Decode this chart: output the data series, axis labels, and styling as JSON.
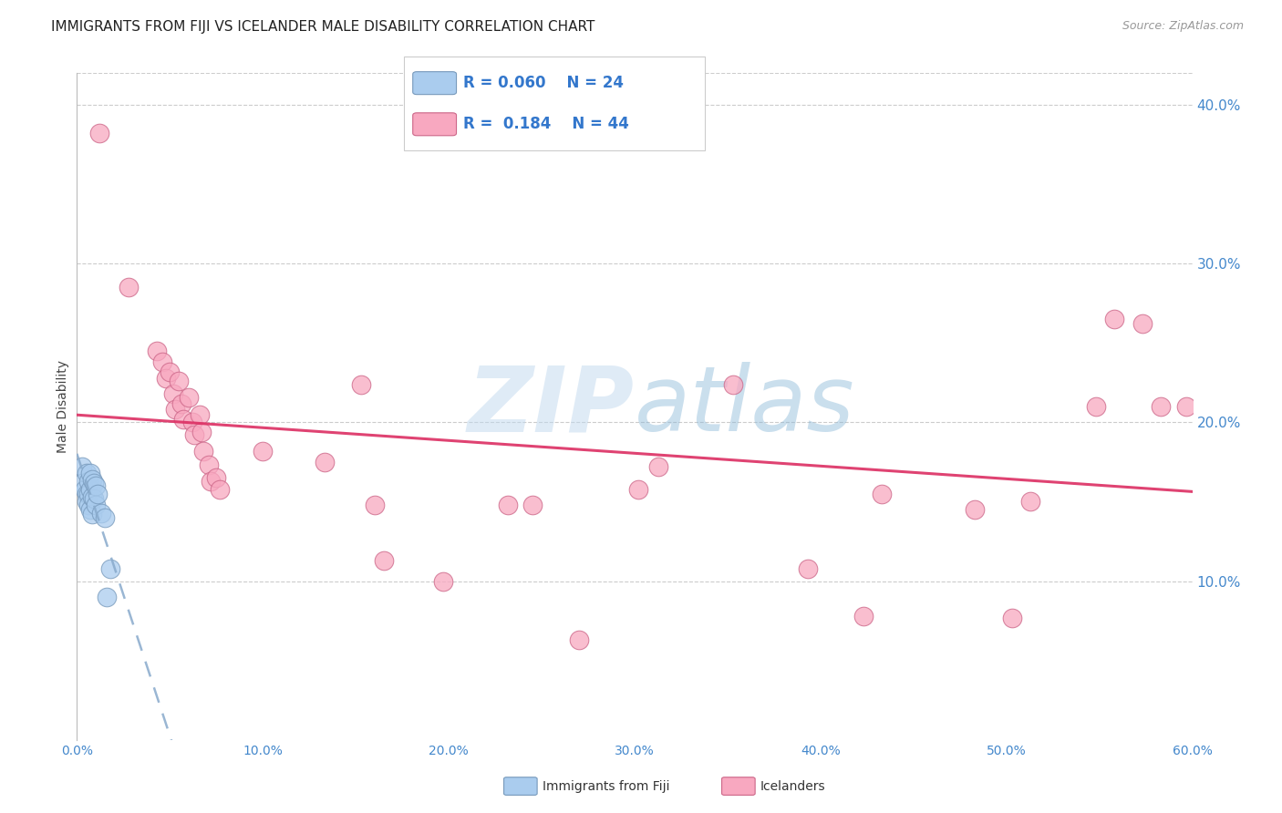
{
  "title": "IMMIGRANTS FROM FIJI VS ICELANDER MALE DISABILITY CORRELATION CHART",
  "source": "Source: ZipAtlas.com",
  "ylabel_label": "Male Disability",
  "watermark": "ZIPatlas",
  "xlim": [
    0.0,
    0.6
  ],
  "ylim": [
    0.0,
    0.42
  ],
  "xticks": [
    0.0,
    0.1,
    0.2,
    0.3,
    0.4,
    0.5,
    0.6
  ],
  "yticks": [
    0.1,
    0.2,
    0.3,
    0.4
  ],
  "xtick_labels": [
    "0.0%",
    "10.0%",
    "20.0%",
    "30.0%",
    "40.0%",
    "50.0%",
    "60.0%"
  ],
  "ytick_labels": [
    "10.0%",
    "20.0%",
    "30.0%",
    "40.0%"
  ],
  "legend_r1": "0.060",
  "legend_n1": "24",
  "legend_r2": "0.184",
  "legend_n2": "44",
  "fiji_color": "#aaccee",
  "fiji_edge": "#7799bb",
  "iceland_color": "#f8a8c0",
  "iceland_edge": "#cc6688",
  "line_fiji_color": "#88aacc",
  "line_iceland_color": "#dd3366",
  "fiji_label": "Immigrants from Fiji",
  "iceland_label": "Icelanders",
  "fiji_points": [
    [
      0.003,
      0.172
    ],
    [
      0.003,
      0.162
    ],
    [
      0.004,
      0.158
    ],
    [
      0.005,
      0.168
    ],
    [
      0.005,
      0.155
    ],
    [
      0.005,
      0.15
    ],
    [
      0.006,
      0.163
    ],
    [
      0.006,
      0.155
    ],
    [
      0.006,
      0.148
    ],
    [
      0.007,
      0.168
    ],
    [
      0.007,
      0.158
    ],
    [
      0.007,
      0.145
    ],
    [
      0.008,
      0.164
    ],
    [
      0.008,
      0.153
    ],
    [
      0.008,
      0.142
    ],
    [
      0.009,
      0.162
    ],
    [
      0.009,
      0.152
    ],
    [
      0.01,
      0.16
    ],
    [
      0.01,
      0.148
    ],
    [
      0.011,
      0.155
    ],
    [
      0.013,
      0.143
    ],
    [
      0.015,
      0.14
    ],
    [
      0.016,
      0.09
    ],
    [
      0.018,
      0.108
    ]
  ],
  "iceland_points": [
    [
      0.012,
      0.382
    ],
    [
      0.028,
      0.285
    ],
    [
      0.043,
      0.245
    ],
    [
      0.046,
      0.238
    ],
    [
      0.048,
      0.228
    ],
    [
      0.05,
      0.232
    ],
    [
      0.052,
      0.218
    ],
    [
      0.053,
      0.208
    ],
    [
      0.055,
      0.226
    ],
    [
      0.056,
      0.212
    ],
    [
      0.057,
      0.202
    ],
    [
      0.06,
      0.216
    ],
    [
      0.062,
      0.2
    ],
    [
      0.063,
      0.192
    ],
    [
      0.066,
      0.205
    ],
    [
      0.067,
      0.194
    ],
    [
      0.068,
      0.182
    ],
    [
      0.071,
      0.173
    ],
    [
      0.072,
      0.163
    ],
    [
      0.075,
      0.165
    ],
    [
      0.077,
      0.158
    ],
    [
      0.1,
      0.182
    ],
    [
      0.133,
      0.175
    ],
    [
      0.153,
      0.224
    ],
    [
      0.16,
      0.148
    ],
    [
      0.165,
      0.113
    ],
    [
      0.197,
      0.1
    ],
    [
      0.232,
      0.148
    ],
    [
      0.245,
      0.148
    ],
    [
      0.27,
      0.063
    ],
    [
      0.302,
      0.158
    ],
    [
      0.313,
      0.172
    ],
    [
      0.353,
      0.224
    ],
    [
      0.393,
      0.108
    ],
    [
      0.423,
      0.078
    ],
    [
      0.433,
      0.155
    ],
    [
      0.483,
      0.145
    ],
    [
      0.503,
      0.077
    ],
    [
      0.513,
      0.15
    ],
    [
      0.548,
      0.21
    ],
    [
      0.558,
      0.265
    ],
    [
      0.573,
      0.262
    ],
    [
      0.583,
      0.21
    ],
    [
      0.597,
      0.21
    ]
  ]
}
